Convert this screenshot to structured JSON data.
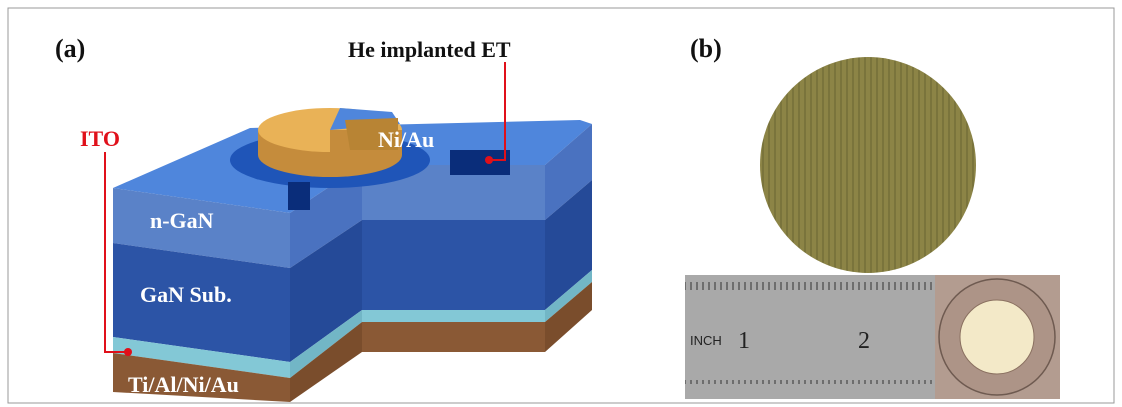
{
  "panel_a": {
    "label": "(a)",
    "callouts": [
      "ITO",
      "He implanted ET"
    ],
    "layers": [
      "Ni/Au",
      "n-GaN",
      "GaN Sub.",
      "Ti/Al/Ni/Au"
    ]
  },
  "panel_b": {
    "label": "(b)",
    "ruler": [
      "INCH",
      "1",
      "2"
    ]
  }
}
